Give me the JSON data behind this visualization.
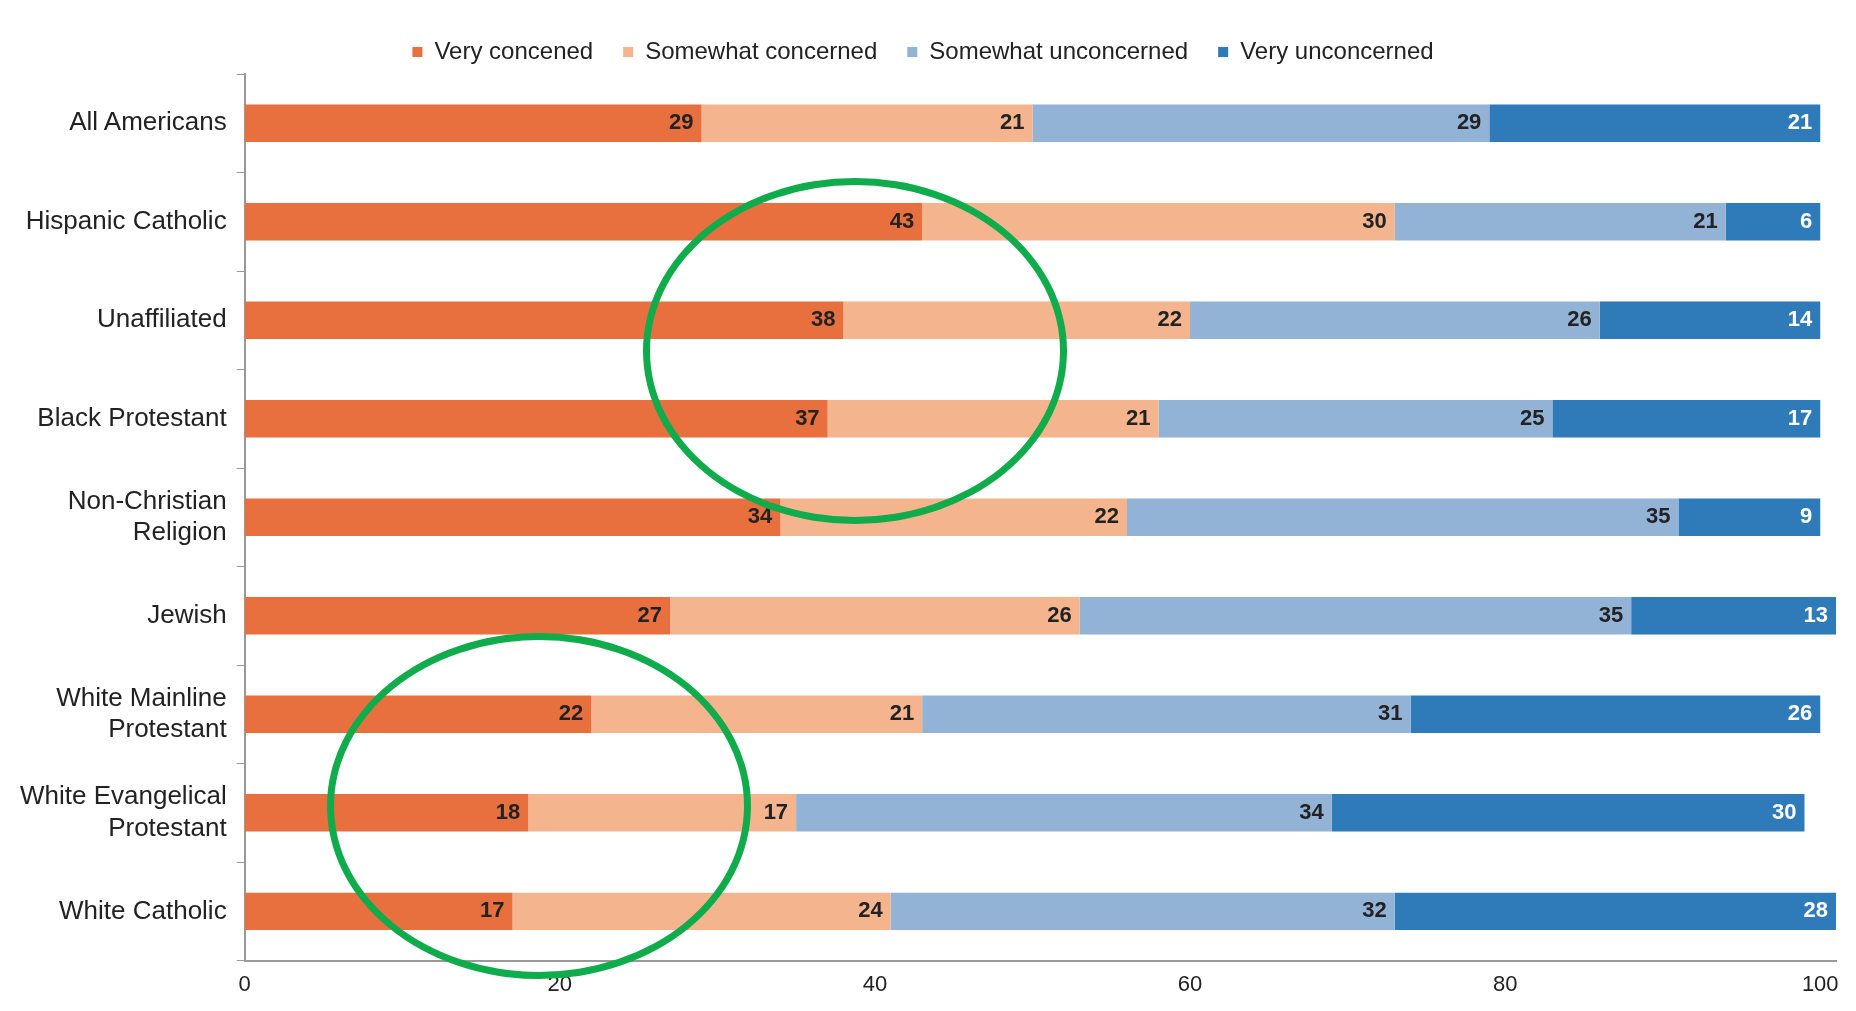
{
  "chart_data": {
    "type": "bar",
    "orientation": "horizontal",
    "stacked": true,
    "legend": "top",
    "data_labels": true,
    "categories": [
      "All Americans",
      "Hispanic Catholic",
      "Unaffiliated",
      "Black Protestant",
      "Non-Christian Religion",
      "Jewish",
      "White Mainline Protestant",
      "White Evangelical Protestant",
      "White Catholic"
    ],
    "series": [
      {
        "name": "Very concened",
        "color": "#e8703f",
        "values": [
          29,
          43,
          38,
          37,
          34,
          27,
          22,
          18,
          17
        ]
      },
      {
        "name": "Somewhat concerned",
        "color": "#f3b48e",
        "values": [
          21,
          30,
          22,
          21,
          22,
          26,
          21,
          17,
          24
        ]
      },
      {
        "name": "Somewhat unconcerned",
        "color": "#93b3d6",
        "values": [
          29,
          21,
          26,
          25,
          35,
          35,
          31,
          34,
          32
        ]
      },
      {
        "name": "Very unconcerned",
        "color": "#2f7bb9",
        "values": [
          21,
          6,
          14,
          17,
          9,
          13,
          26,
          30,
          28
        ]
      }
    ],
    "xlim": [
      0,
      101
    ],
    "xticks": [
      0,
      20,
      40,
      60,
      80,
      100
    ]
  }
}
